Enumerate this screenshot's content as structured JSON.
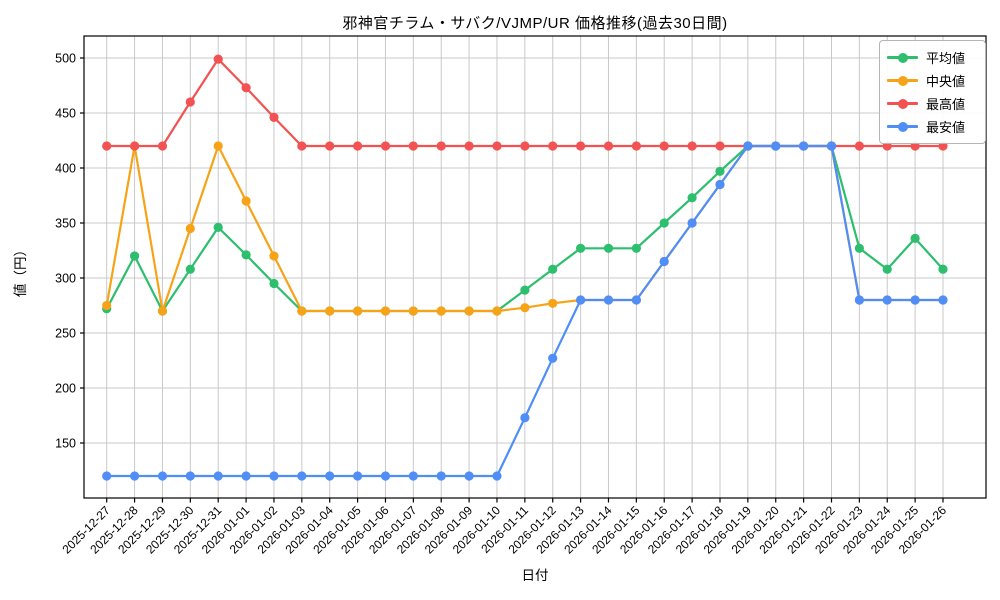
{
  "figure": {
    "title": "邪神官チラム・サバク/VJMP/UR 価格推移(過去30日間)",
    "xlabel": "日付",
    "ylabel": "値（円）"
  },
  "chart_data": {
    "type": "line",
    "title": "邪神官チラム・サバク/VJMP/UR 価格推移(過去30日間)",
    "xlabel": "日付",
    "ylabel": "値（円）",
    "categories": [
      "2025-12-27",
      "2025-12-28",
      "2025-12-29",
      "2025-12-30",
      "2025-12-31",
      "2026-01-01",
      "2026-01-02",
      "2026-01-03",
      "2026-01-04",
      "2026-01-05",
      "2026-01-06",
      "2026-01-07",
      "2026-01-08",
      "2026-01-09",
      "2026-01-10",
      "2026-01-11",
      "2026-01-12",
      "2026-01-13",
      "2026-01-14",
      "2026-01-15",
      "2026-01-16",
      "2026-01-17",
      "2026-01-18",
      "2026-01-19",
      "2026-01-20",
      "2026-01-21",
      "2026-01-22",
      "2026-01-23",
      "2026-01-24",
      "2026-01-25",
      "2026-01-26"
    ],
    "series": [
      {
        "name": "平均値",
        "color": "#2dbe6e",
        "values": [
          272,
          320,
          270,
          308,
          346,
          321,
          295,
          270,
          270,
          270,
          270,
          270,
          270,
          270,
          270,
          289,
          308,
          327,
          327,
          327,
          350,
          373,
          397,
          420,
          420,
          420,
          420,
          327,
          308,
          336,
          308
        ]
      },
      {
        "name": "中央値",
        "color": "#f7a318",
        "values": [
          275,
          420,
          270,
          345,
          420,
          370,
          320,
          270,
          270,
          270,
          270,
          270,
          270,
          270,
          270,
          273,
          277,
          280,
          280,
          280,
          315,
          350,
          385,
          420,
          420,
          420,
          420,
          280,
          280,
          280,
          280
        ]
      },
      {
        "name": "最高値",
        "color": "#f25252",
        "values": [
          420,
          420,
          420,
          460,
          499,
          473,
          446,
          420,
          420,
          420,
          420,
          420,
          420,
          420,
          420,
          420,
          420,
          420,
          420,
          420,
          420,
          420,
          420,
          420,
          420,
          420,
          420,
          420,
          420,
          420,
          420
        ]
      },
      {
        "name": "最安値",
        "color": "#4f8ef7",
        "values": [
          120,
          120,
          120,
          120,
          120,
          120,
          120,
          120,
          120,
          120,
          120,
          120,
          120,
          120,
          120,
          173,
          227,
          280,
          280,
          280,
          315,
          350,
          385,
          420,
          420,
          420,
          420,
          280,
          280,
          280,
          280
        ]
      }
    ],
    "y_ticks": [
      150,
      200,
      250,
      300,
      350,
      400,
      450,
      500
    ],
    "ylim": [
      100,
      520
    ],
    "grid": true,
    "legend_position": "upper right",
    "grid_color": "#c9c9c9",
    "axis_color": "#000000"
  }
}
